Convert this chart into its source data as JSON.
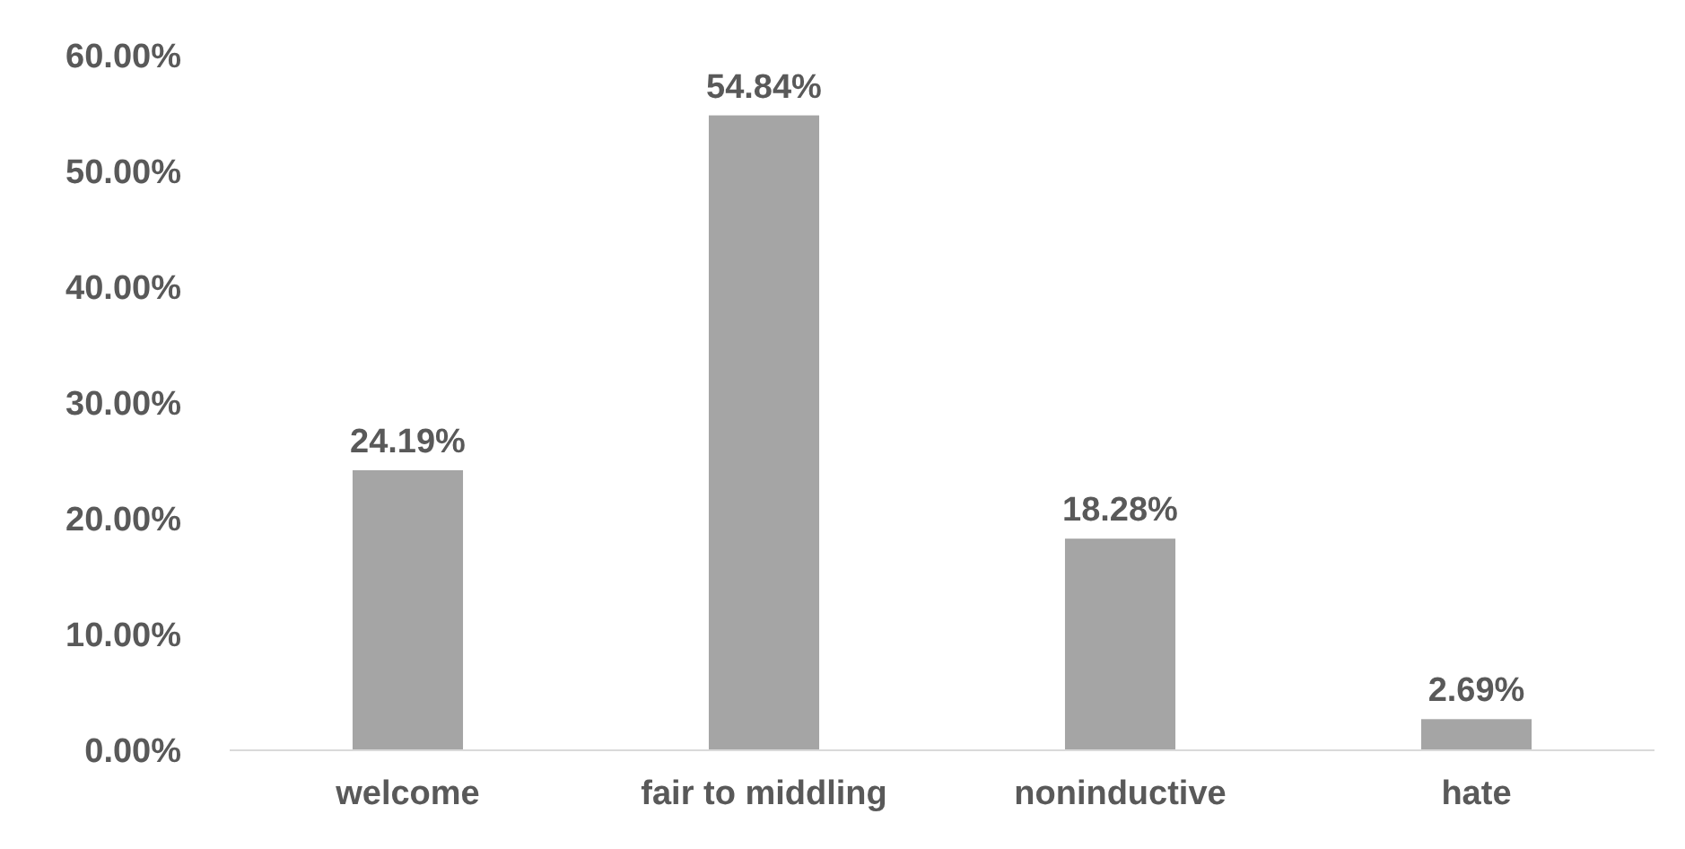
{
  "chart_data": {
    "type": "bar",
    "categories": [
      "welcome",
      "fair to middling",
      "noninductive",
      "hate"
    ],
    "values": [
      24.19,
      54.84,
      18.28,
      2.69
    ],
    "color": "#a5a5a5",
    "value_labels": [
      "24.19%",
      "54.84%",
      "18.28%",
      "2.69%"
    ],
    "ylim": [
      0,
      60
    ],
    "yticks": [
      {
        "value": 0,
        "label": "0.00%"
      },
      {
        "value": 10,
        "label": "10.00%"
      },
      {
        "value": 20,
        "label": "20.00%"
      },
      {
        "value": 30,
        "label": "30.00%"
      },
      {
        "value": 40,
        "label": "40.00%"
      },
      {
        "value": 50,
        "label": "50.00%"
      },
      {
        "value": 60,
        "label": "60.00%"
      }
    ],
    "grid": false
  }
}
